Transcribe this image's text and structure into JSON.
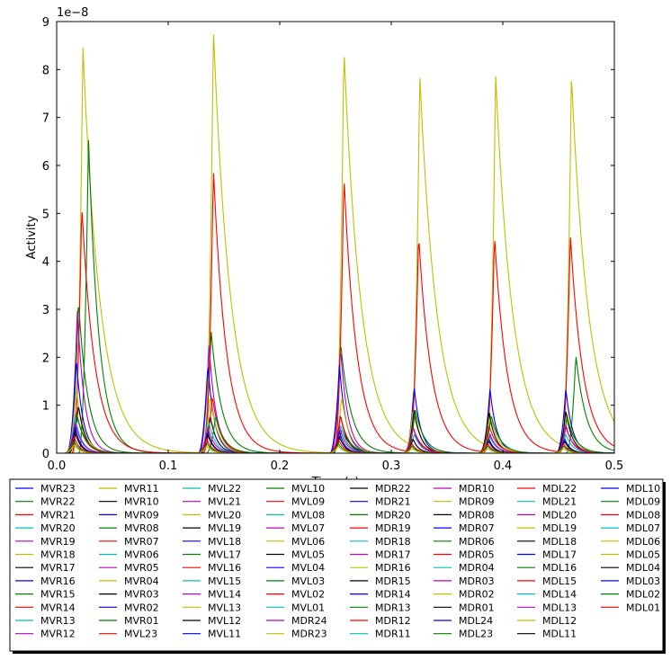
{
  "chart_data": {
    "type": "line",
    "xlabel": "Time (s)",
    "ylabel": "Activity",
    "offset_label": "1e−8",
    "xlim": [
      0.0,
      0.5
    ],
    "ylim": [
      0,
      9
    ],
    "x_ticks": [
      "0.0",
      "0.1",
      "0.2",
      "0.3",
      "0.4",
      "0.5"
    ],
    "y_ticks": [
      "0",
      "1",
      "2",
      "3",
      "4",
      "5",
      "6",
      "7",
      "8",
      "9"
    ],
    "legend_position": "below-plot",
    "legend_columns": 8,
    "legend_items": [
      {
        "name": "MVR23",
        "color": "#0000ff"
      },
      {
        "name": "MVR22",
        "color": "#008000"
      },
      {
        "name": "MVR21",
        "color": "#ff0000"
      },
      {
        "name": "MVR20",
        "color": "#00bfbf"
      },
      {
        "name": "MVR19",
        "color": "#bf00bf"
      },
      {
        "name": "MVR18",
        "color": "#bfbf00"
      },
      {
        "name": "MVR17",
        "color": "#000000"
      },
      {
        "name": "MVR16",
        "color": "#0000ff"
      },
      {
        "name": "MVR15",
        "color": "#008000"
      },
      {
        "name": "MVR14",
        "color": "#ff0000"
      },
      {
        "name": "MVR13",
        "color": "#00bfbf"
      },
      {
        "name": "MVR12",
        "color": "#bf00bf"
      },
      {
        "name": "MVR11",
        "color": "#bfbf00"
      },
      {
        "name": "MVR10",
        "color": "#000000"
      },
      {
        "name": "MVR09",
        "color": "#0000ff"
      },
      {
        "name": "MVR08",
        "color": "#008000"
      },
      {
        "name": "MVR07",
        "color": "#ff0000"
      },
      {
        "name": "MVR06",
        "color": "#00bfbf"
      },
      {
        "name": "MVR05",
        "color": "#bf00bf"
      },
      {
        "name": "MVR04",
        "color": "#bfbf00"
      },
      {
        "name": "MVR03",
        "color": "#000000"
      },
      {
        "name": "MVR02",
        "color": "#0000ff"
      },
      {
        "name": "MVR01",
        "color": "#008000"
      },
      {
        "name": "MVL23",
        "color": "#ff0000"
      },
      {
        "name": "MVL22",
        "color": "#00bfbf"
      },
      {
        "name": "MVL21",
        "color": "#bf00bf"
      },
      {
        "name": "MVL20",
        "color": "#bfbf00"
      },
      {
        "name": "MVL19",
        "color": "#000000"
      },
      {
        "name": "MVL18",
        "color": "#0000ff"
      },
      {
        "name": "MVL17",
        "color": "#008000"
      },
      {
        "name": "MVL16",
        "color": "#ff0000"
      },
      {
        "name": "MVL15",
        "color": "#00bfbf"
      },
      {
        "name": "MVL14",
        "color": "#bf00bf"
      },
      {
        "name": "MVL13",
        "color": "#bfbf00"
      },
      {
        "name": "MVL12",
        "color": "#000000"
      },
      {
        "name": "MVL11",
        "color": "#0000ff"
      },
      {
        "name": "MVL10",
        "color": "#008000"
      },
      {
        "name": "MVL09",
        "color": "#ff0000"
      },
      {
        "name": "MVL08",
        "color": "#00bfbf"
      },
      {
        "name": "MVL07",
        "color": "#bf00bf"
      },
      {
        "name": "MVL06",
        "color": "#bfbf00"
      },
      {
        "name": "MVL05",
        "color": "#000000"
      },
      {
        "name": "MVL04",
        "color": "#0000ff"
      },
      {
        "name": "MVL03",
        "color": "#008000"
      },
      {
        "name": "MVL02",
        "color": "#ff0000"
      },
      {
        "name": "MVL01",
        "color": "#00bfbf"
      },
      {
        "name": "MDR24",
        "color": "#bf00bf"
      },
      {
        "name": "MDR23",
        "color": "#bfbf00"
      },
      {
        "name": "MDR22",
        "color": "#000000"
      },
      {
        "name": "MDR21",
        "color": "#0000ff"
      },
      {
        "name": "MDR20",
        "color": "#008000"
      },
      {
        "name": "MDR19",
        "color": "#ff0000"
      },
      {
        "name": "MDR18",
        "color": "#00bfbf"
      },
      {
        "name": "MDR17",
        "color": "#bf00bf"
      },
      {
        "name": "MDR16",
        "color": "#bfbf00"
      },
      {
        "name": "MDR15",
        "color": "#000000"
      },
      {
        "name": "MDR14",
        "color": "#0000ff"
      },
      {
        "name": "MDR13",
        "color": "#008000"
      },
      {
        "name": "MDR12",
        "color": "#ff0000"
      },
      {
        "name": "MDR11",
        "color": "#00bfbf"
      },
      {
        "name": "MDR10",
        "color": "#bf00bf"
      },
      {
        "name": "MDR09",
        "color": "#bfbf00"
      },
      {
        "name": "MDR08",
        "color": "#000000"
      },
      {
        "name": "MDR07",
        "color": "#0000ff"
      },
      {
        "name": "MDR06",
        "color": "#008000"
      },
      {
        "name": "MDR05",
        "color": "#ff0000"
      },
      {
        "name": "MDR04",
        "color": "#00bfbf"
      },
      {
        "name": "MDR03",
        "color": "#bf00bf"
      },
      {
        "name": "MDR02",
        "color": "#bfbf00"
      },
      {
        "name": "MDR01",
        "color": "#000000"
      },
      {
        "name": "MDL24",
        "color": "#0000ff"
      },
      {
        "name": "MDL23",
        "color": "#008000"
      },
      {
        "name": "MDL22",
        "color": "#ff0000"
      },
      {
        "name": "MDL21",
        "color": "#00bfbf"
      },
      {
        "name": "MDL20",
        "color": "#bf00bf"
      },
      {
        "name": "MDL19",
        "color": "#bfbf00"
      },
      {
        "name": "MDL18",
        "color": "#000000"
      },
      {
        "name": "MDL17",
        "color": "#0000ff"
      },
      {
        "name": "MDL16",
        "color": "#008000"
      },
      {
        "name": "MDL15",
        "color": "#ff0000"
      },
      {
        "name": "MDL14",
        "color": "#00bfbf"
      },
      {
        "name": "MDL13",
        "color": "#bf00bf"
      },
      {
        "name": "MDL12",
        "color": "#bfbf00"
      },
      {
        "name": "MDL11",
        "color": "#000000"
      },
      {
        "name": "MDL10",
        "color": "#0000ff"
      },
      {
        "name": "MDL09",
        "color": "#008000"
      },
      {
        "name": "MDL08",
        "color": "#ff0000"
      },
      {
        "name": "MDL07",
        "color": "#00bfbf"
      },
      {
        "name": "MDL06",
        "color": "#bfbf00"
      },
      {
        "name": "MDL05",
        "color": "#bfbf00"
      },
      {
        "name": "MDL04",
        "color": "#000000"
      },
      {
        "name": "MDL03",
        "color": "#0000ff"
      },
      {
        "name": "MDL02",
        "color": "#008000"
      },
      {
        "name": "MDL01",
        "color": "#ff0000"
      }
    ],
    "series": [
      {
        "color": "#bfbf00",
        "peaks": [
          {
            "t": 0.0235,
            "a": 8.5
          },
          {
            "t": 0.1405,
            "a": 8.85
          },
          {
            "t": 0.2575,
            "a": 8.45
          },
          {
            "t": 0.3255,
            "a": 7.82
          },
          {
            "t": 0.3935,
            "a": 7.8
          },
          {
            "t": 0.4615,
            "a": 7.8
          }
        ],
        "tau": 0.0155
      },
      {
        "color": "#008000",
        "peaks": [
          {
            "t": 0.0285,
            "a": 6.58
          },
          {
            "t": 0.1385,
            "a": 2.55
          },
          {
            "t": 0.2545,
            "a": 2.32
          },
          {
            "t": 0.4655,
            "a": 2.05
          }
        ],
        "tau": 0.0095
      },
      {
        "color": "#ff0000",
        "peaks": [
          {
            "t": 0.0225,
            "a": 5.18
          },
          {
            "t": 0.1405,
            "a": 5.95
          },
          {
            "t": 0.2575,
            "a": 5.8
          },
          {
            "t": 0.3245,
            "a": 4.55
          },
          {
            "t": 0.3925,
            "a": 4.55
          },
          {
            "t": 0.4605,
            "a": 4.57
          }
        ],
        "tau": 0.0115
      },
      {
        "color": "#008000",
        "peaks": [
          {
            "t": 0.0195,
            "a": 3.2
          }
        ],
        "tau": 0.0085
      },
      {
        "color": "#bf00bf",
        "peaks": [
          {
            "t": 0.0185,
            "a": 3.0
          },
          {
            "t": 0.1365,
            "a": 2.28
          },
          {
            "t": 0.2545,
            "a": 2.2
          }
        ],
        "tau": 0.0065
      },
      {
        "color": "#0000ff",
        "peaks": [
          {
            "t": 0.0175,
            "a": 2.0
          },
          {
            "t": 0.1355,
            "a": 1.85
          },
          {
            "t": 0.2535,
            "a": 1.85
          },
          {
            "t": 0.3205,
            "a": 1.4
          },
          {
            "t": 0.3885,
            "a": 1.35
          },
          {
            "t": 0.4565,
            "a": 1.35
          }
        ],
        "tau": 0.006
      },
      {
        "color": "#bfbf00",
        "peaks": [
          {
            "t": 0.0175,
            "a": 1.35
          },
          {
            "t": 0.1375,
            "a": 1.2
          },
          {
            "t": 0.2555,
            "a": 1.18
          },
          {
            "t": 0.3195,
            "a": 0.9
          },
          {
            "t": 0.3885,
            "a": 0.85
          },
          {
            "t": 0.4575,
            "a": 0.85
          }
        ],
        "tau": 0.007
      },
      {
        "color": "#000000",
        "peaks": [
          {
            "t": 0.0195,
            "a": 1.0
          },
          {
            "t": 0.1375,
            "a": 0.8
          },
          {
            "t": 0.2545,
            "a": 0.8
          },
          {
            "t": 0.3205,
            "a": 0.92
          },
          {
            "t": 0.3875,
            "a": 0.88
          },
          {
            "t": 0.4565,
            "a": 0.88
          }
        ],
        "tau": 0.006
      },
      {
        "color": "#ff0000",
        "peaks": [
          {
            "t": 0.0175,
            "a": 0.9
          },
          {
            "t": 0.1395,
            "a": 1.2
          },
          {
            "t": 0.2545,
            "a": 0.78
          },
          {
            "t": 0.3195,
            "a": 0.55
          },
          {
            "t": 0.3875,
            "a": 0.6
          },
          {
            "t": 0.4565,
            "a": 0.55
          }
        ],
        "tau": 0.007
      },
      {
        "color": "#008000",
        "peaks": [
          {
            "t": 0.0175,
            "a": 0.85
          },
          {
            "t": 0.1425,
            "a": 0.78
          },
          {
            "t": 0.2555,
            "a": 0.5
          },
          {
            "t": 0.3215,
            "a": 0.92
          },
          {
            "t": 0.3895,
            "a": 0.8
          },
          {
            "t": 0.4575,
            "a": 0.75
          }
        ],
        "tau": 0.008
      },
      {
        "color": "#00bfbf",
        "peaks": [
          {
            "t": 0.0165,
            "a": 0.75
          },
          {
            "t": 0.1365,
            "a": 0.65
          },
          {
            "t": 0.2545,
            "a": 0.6
          },
          {
            "t": 0.3205,
            "a": 0.4
          },
          {
            "t": 0.3885,
            "a": 0.35
          },
          {
            "t": 0.4565,
            "a": 0.4
          }
        ],
        "tau": 0.006
      },
      {
        "color": "#bf00bf",
        "peaks": [
          {
            "t": 0.0165,
            "a": 0.65
          },
          {
            "t": 0.1355,
            "a": 0.55
          },
          {
            "t": 0.2535,
            "a": 0.55
          },
          {
            "t": 0.3195,
            "a": 0.55
          },
          {
            "t": 0.3885,
            "a": 0.4
          },
          {
            "t": 0.4565,
            "a": 0.6
          }
        ],
        "tau": 0.006
      },
      {
        "color": "#0000ff",
        "peaks": [
          {
            "t": 0.0165,
            "a": 0.55
          },
          {
            "t": 0.1355,
            "a": 0.45
          },
          {
            "t": 0.2535,
            "a": 0.45
          },
          {
            "t": 0.3195,
            "a": 0.3
          },
          {
            "t": 0.3875,
            "a": 0.3
          },
          {
            "t": 0.4555,
            "a": 0.3
          }
        ],
        "tau": 0.005
      },
      {
        "color": "#000000",
        "peaks": [
          {
            "t": 0.0165,
            "a": 0.45
          },
          {
            "t": 0.1355,
            "a": 0.4
          },
          {
            "t": 0.2535,
            "a": 0.35
          },
          {
            "t": 0.3195,
            "a": 0.3
          },
          {
            "t": 0.3875,
            "a": 0.25
          },
          {
            "t": 0.4555,
            "a": 0.25
          }
        ],
        "tau": 0.005
      },
      {
        "color": "#ff0000",
        "peaks": [
          {
            "t": 0.0155,
            "a": 0.35
          },
          {
            "t": 0.1345,
            "a": 0.3
          },
          {
            "t": 0.2525,
            "a": 0.3
          },
          {
            "t": 0.3185,
            "a": 0.2
          },
          {
            "t": 0.3865,
            "a": 0.2
          },
          {
            "t": 0.4545,
            "a": 0.2
          }
        ],
        "tau": 0.005
      },
      {
        "color": "#008000",
        "peaks": [
          {
            "t": 0.0155,
            "a": 0.25
          },
          {
            "t": 0.1345,
            "a": 0.22
          },
          {
            "t": 0.2525,
            "a": 0.2
          },
          {
            "t": 0.3185,
            "a": 0.15
          },
          {
            "t": 0.3865,
            "a": 0.15
          },
          {
            "t": 0.4545,
            "a": 0.15
          }
        ],
        "tau": 0.005
      },
      {
        "color": "#bfbf00",
        "peaks": [
          {
            "t": 0.0155,
            "a": 0.18
          },
          {
            "t": 0.1345,
            "a": 0.15
          },
          {
            "t": 0.2525,
            "a": 0.15
          },
          {
            "t": 0.3185,
            "a": 0.1
          },
          {
            "t": 0.3865,
            "a": 0.1
          },
          {
            "t": 0.4545,
            "a": 0.1
          }
        ],
        "tau": 0.005
      }
    ]
  }
}
